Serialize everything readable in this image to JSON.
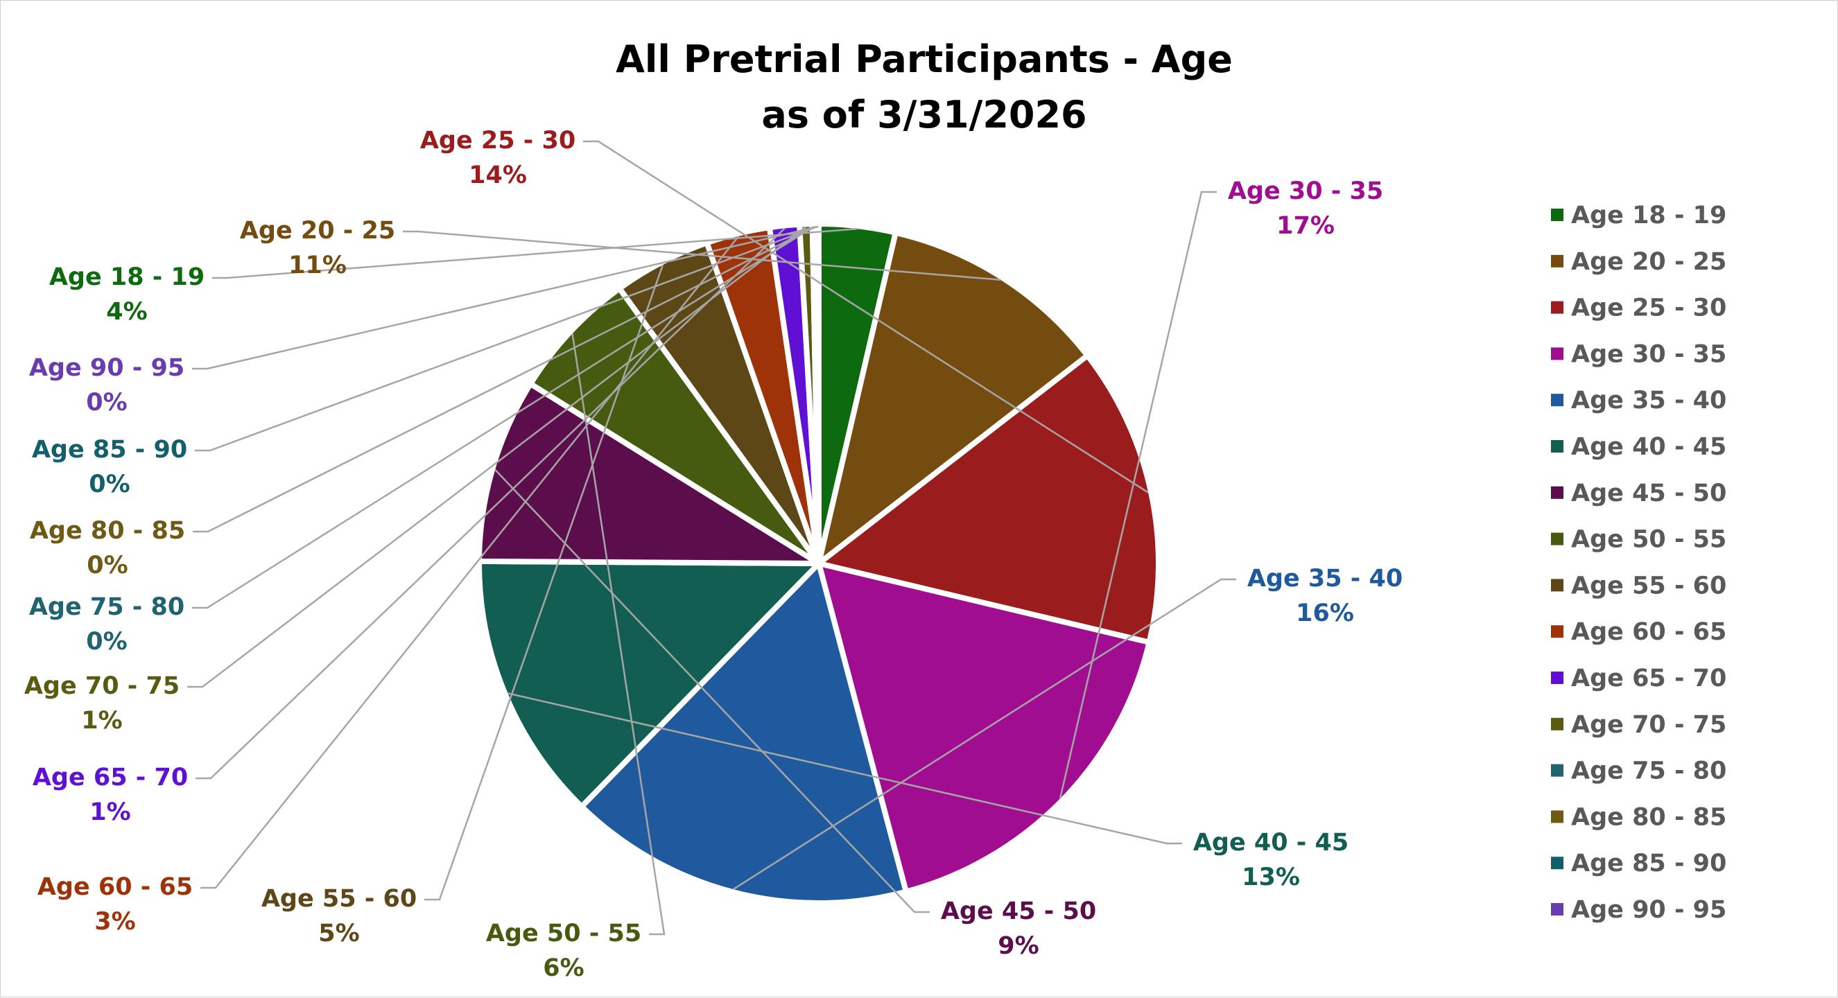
{
  "chart_data": {
    "type": "pie",
    "title": "All Pretrial Participants - Age",
    "subtitle": "as of 3/31/2026",
    "legend_position": "right",
    "slices": [
      {
        "label": "Age 18 - 19",
        "value": 3.6,
        "percent_label": "4%",
        "color": "#0e6a0e"
      },
      {
        "label": "Age 20 - 25",
        "value": 10.8,
        "percent_label": "11%",
        "color": "#744c10"
      },
      {
        "label": "Age 25 - 30",
        "value": 14.1,
        "percent_label": "14%",
        "color": "#9b1c1c"
      },
      {
        "label": "Age 30 - 35",
        "value": 17.0,
        "percent_label": "17%",
        "color": "#a10d91"
      },
      {
        "label": "Age 35 - 40",
        "value": 16.3,
        "percent_label": "16%",
        "color": "#1f5a9e"
      },
      {
        "label": "Age 40 - 45",
        "value": 12.7,
        "percent_label": "13%",
        "color": "#125e52"
      },
      {
        "label": "Age 45 - 50",
        "value": 8.7,
        "percent_label": "9%",
        "color": "#5c0e4c"
      },
      {
        "label": "Age 50 - 55",
        "value": 6.1,
        "percent_label": "6%",
        "color": "#475b10"
      },
      {
        "label": "Age 55 - 60",
        "value": 4.6,
        "percent_label": "5%",
        "color": "#5e4716"
      },
      {
        "label": "Age 60 - 65",
        "value": 3.0,
        "percent_label": "3%",
        "color": "#9e330a"
      },
      {
        "label": "Age 65 - 70",
        "value": 1.4,
        "percent_label": "1%",
        "color": "#5f10d4"
      },
      {
        "label": "Age 70 - 75",
        "value": 0.6,
        "percent_label": "1%",
        "color": "#5a5a10"
      },
      {
        "label": "Age 75 - 80",
        "value": 0.1,
        "percent_label": "0%",
        "color": "#1f6470"
      },
      {
        "label": "Age 80 - 85",
        "value": 0.1,
        "percent_label": "0%",
        "color": "#6e5a14"
      },
      {
        "label": "Age 85 - 90",
        "value": 0.05,
        "percent_label": "0%",
        "color": "#135f6b"
      },
      {
        "label": "Age 90 - 95",
        "value": 0.05,
        "percent_label": "0%",
        "color": "#6a3cb0"
      }
    ]
  }
}
